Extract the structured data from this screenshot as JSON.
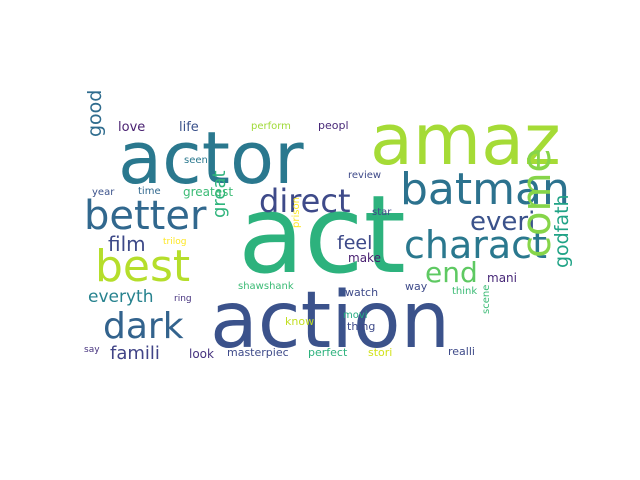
{
  "words": [
    {
      "text": "act",
      "color": "#2db27d"
    },
    {
      "text": "action",
      "color": "#3b528b"
    },
    {
      "text": "actor",
      "color": "#2a788e"
    },
    {
      "text": "amaz",
      "color": "#a5db36"
    },
    {
      "text": "batman",
      "color": "#2c728e"
    },
    {
      "text": "better",
      "color": "#31688e"
    },
    {
      "text": "best",
      "color": "#b5de2b"
    },
    {
      "text": "charact",
      "color": "#2a788e"
    },
    {
      "text": "dark",
      "color": "#33638d"
    },
    {
      "text": "direct",
      "color": "#3e4a89"
    },
    {
      "text": "everi",
      "color": "#3b528b"
    },
    {
      "text": "come",
      "color": "#86d549"
    },
    {
      "text": "end",
      "color": "#5ec962"
    },
    {
      "text": "feel",
      "color": "#3e4a89"
    },
    {
      "text": "film",
      "color": "#3e4a89"
    },
    {
      "text": "everyth",
      "color": "#26828e"
    },
    {
      "text": "famili",
      "color": "#414487"
    },
    {
      "text": "godfath",
      "color": "#20a386"
    },
    {
      "text": "good",
      "color": "#2f6c8e"
    },
    {
      "text": "great",
      "color": "#2fb47c"
    },
    {
      "text": "love",
      "color": "#481f70"
    },
    {
      "text": "life",
      "color": "#3b528b"
    },
    {
      "text": "perform",
      "color": "#a0da39"
    },
    {
      "text": "peopl",
      "color": "#482878"
    },
    {
      "text": "seen",
      "color": "#2a788e"
    },
    {
      "text": "review",
      "color": "#3e4a89"
    },
    {
      "text": "year",
      "color": "#3b528b"
    },
    {
      "text": "time",
      "color": "#31688e"
    },
    {
      "text": "greatest",
      "color": "#3bbb75"
    },
    {
      "text": "trilog",
      "color": "#fde725"
    },
    {
      "text": "star",
      "color": "#3e4a89"
    },
    {
      "text": "make",
      "color": "#481f70"
    },
    {
      "text": "mani",
      "color": "#482878"
    },
    {
      "text": "prison",
      "color": "#fde725"
    },
    {
      "text": "think",
      "color": "#3bbb75"
    },
    {
      "text": "way",
      "color": "#3e4a89"
    },
    {
      "text": "ring",
      "color": "#46327e"
    },
    {
      "text": "shawshank",
      "color": "#3bbb75"
    },
    {
      "text": "watch",
      "color": "#3e4a89"
    },
    {
      "text": "know",
      "color": "#c2df23"
    },
    {
      "text": "movi",
      "color": "#25ab82"
    },
    {
      "text": "thing",
      "color": "#3e4a89"
    },
    {
      "text": "scene",
      "color": "#3bbb75"
    },
    {
      "text": "say",
      "color": "#46327e"
    },
    {
      "text": "look",
      "color": "#46327e"
    },
    {
      "text": "masterpiec",
      "color": "#3e4a89"
    },
    {
      "text": "perfect",
      "color": "#2db27d"
    },
    {
      "text": "stori",
      "color": "#d2e21b"
    },
    {
      "text": "realli",
      "color": "#3e4a89"
    }
  ]
}
